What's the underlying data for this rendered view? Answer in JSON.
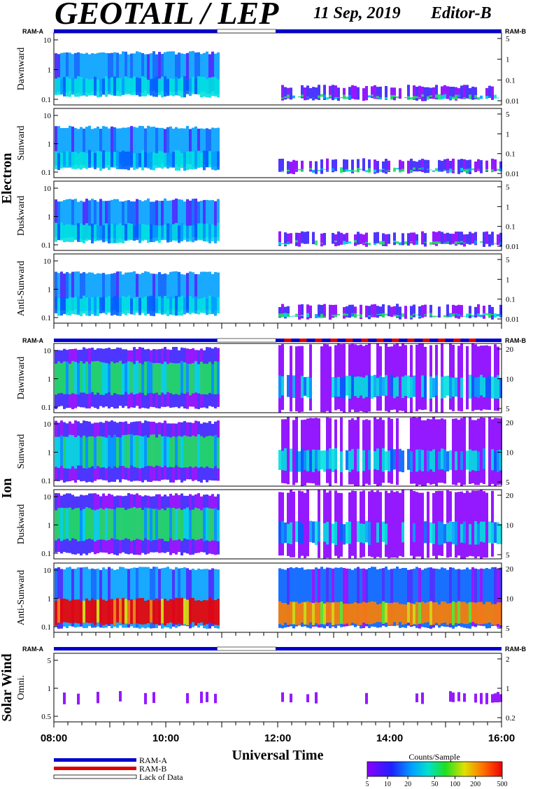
{
  "header": {
    "title": "GEOTAIL / LEP",
    "date": "11 Sep, 2019",
    "editor": "Editor-B"
  },
  "ram_labels": {
    "left": "RAM-A",
    "right": "RAM-B"
  },
  "x_axis": {
    "label": "Universal Time",
    "ticks": [
      "08:00",
      "10:00",
      "12:00",
      "14:00",
      "16:00"
    ],
    "range_hours": [
      8,
      16
    ]
  },
  "legend": {
    "ram_a": "RAM-A",
    "ram_b": "RAM-B",
    "lack": "Lack of Data",
    "colors": {
      "ram_a": "#0000cc",
      "ram_b": "#dd0000"
    }
  },
  "colorbar": {
    "title": "Counts/Sample",
    "ticks": [
      "5",
      "10",
      "20",
      "50",
      "100",
      "200",
      "500"
    ],
    "range": [
      5,
      500
    ],
    "scale": "log"
  },
  "chart_data": {
    "type": "heatmap",
    "x_range": [
      "08:00",
      "16:00"
    ],
    "gap": {
      "start": "10:55",
      "end": "11:58"
    },
    "groups": [
      {
        "name": "Electron",
        "panels": [
          {
            "label": "Dawnward",
            "left_ticks": [
              "10",
              "1",
              "0.1"
            ],
            "right_ticks": [
              "5",
              "1",
              "0.1",
              "0.01"
            ]
          },
          {
            "label": "Sunward",
            "left_ticks": [
              "10",
              "1",
              "0.1"
            ],
            "right_ticks": [
              "5",
              "1",
              "0.1",
              "0.01"
            ]
          },
          {
            "label": "Duskward",
            "left_ticks": [
              "10",
              "1",
              "0.1"
            ],
            "right_ticks": [
              "5",
              "1",
              "0.1",
              "0.01"
            ]
          },
          {
            "label": "Anti-Sunward",
            "left_ticks": [
              "10",
              "1",
              "0.1"
            ],
            "right_ticks": [
              "5",
              "1",
              "0.1",
              "0.01"
            ]
          }
        ]
      },
      {
        "name": "Ion",
        "panels": [
          {
            "label": "Dawnward",
            "left_ticks": [
              "10",
              "1",
              "0.1"
            ],
            "right_ticks": [
              "20",
              "10",
              "5"
            ]
          },
          {
            "label": "Sunward",
            "left_ticks": [
              "10",
              "1",
              "0.1"
            ],
            "right_ticks": [
              "20",
              "10",
              "5"
            ]
          },
          {
            "label": "Duskward",
            "left_ticks": [
              "10",
              "1",
              "0.1"
            ],
            "right_ticks": [
              "20",
              "10",
              "5"
            ]
          },
          {
            "label": "Anti-Sunward",
            "left_ticks": [
              "10",
              "1",
              "0.1"
            ],
            "right_ticks": [
              "20",
              "10",
              "5"
            ]
          }
        ]
      },
      {
        "name": "Solar Wind",
        "panels": [
          {
            "label": "Omni.",
            "left_ticks": [
              "5",
              "1",
              "0.5"
            ],
            "right_ticks": [
              "2",
              "1",
              "0.2"
            ]
          }
        ]
      }
    ]
  }
}
